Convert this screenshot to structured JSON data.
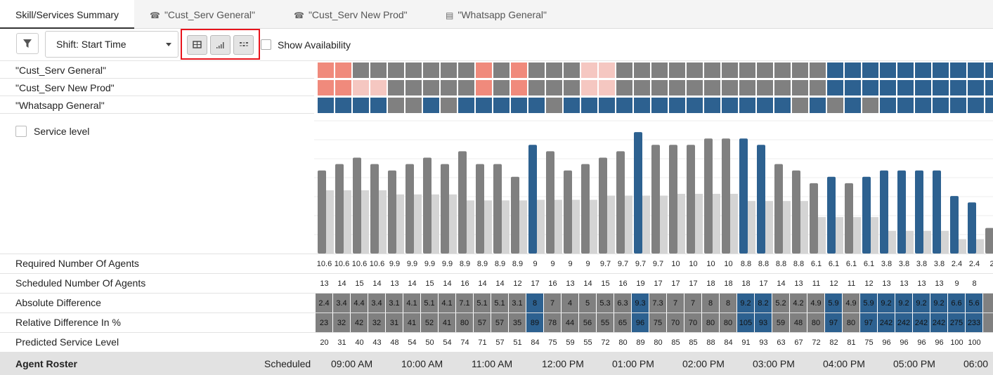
{
  "tabs": [
    {
      "label": "Skill/Services Summary",
      "icon": "none"
    },
    {
      "label": "\"Cust_Serv General\"",
      "icon": "phone-icon"
    },
    {
      "label": "\"Cust_Serv New Prod\"",
      "icon": "phone-icon"
    },
    {
      "label": "\"Whatsapp General\"",
      "icon": "chat-icon"
    }
  ],
  "toolbar": {
    "shift_select": "Shift: Start Time",
    "show_availability": "Show Availability"
  },
  "skills": [
    "\"Cust_Serv General\"",
    "\"Cust_Serv New Prod\"",
    "\"Whatsapp General\""
  ],
  "colors": {
    "gray": "#808080",
    "blue": "#2d6190",
    "red": "#f08a7c",
    "pink": "#f5c7c1",
    "light": "#d4d4d4"
  },
  "heatmap": [
    "RRGGGGGGGRGRGGGPPGGGGGGGGGGGGBBBBBBBBBBBBBBB",
    "RRPPGGGGGRGRGGGPPGGGGGGGGGGGGBBBBBBBBBBBBBBB",
    "BBBBGGBGBBBBBGBBBBBBBBBBBBBGBGBGBBBBBBBBRRRR"
  ],
  "service_level": "Service level",
  "chart_data": {
    "type": "bar",
    "series": [
      {
        "values": [
          13,
          14,
          15,
          14,
          13,
          14,
          15,
          14,
          16,
          14,
          14,
          12,
          17,
          16,
          13,
          14,
          15,
          16,
          19,
          17,
          17,
          17,
          18,
          18,
          18,
          17,
          14,
          13,
          11,
          12,
          11,
          12,
          13,
          13,
          13,
          13,
          9,
          8,
          4
        ]
      },
      {
        "values": [
          10.6,
          10.6,
          10.6,
          10.6,
          9.9,
          9.9,
          9.9,
          9.9,
          8.9,
          8.9,
          8.9,
          8.9,
          9,
          9,
          9,
          9,
          9.7,
          9.7,
          9.7,
          9.7,
          10,
          10,
          10,
          10,
          8.8,
          8.8,
          8.8,
          8.8,
          6.1,
          6.1,
          6.1,
          6.1,
          3.8,
          3.8,
          3.8,
          3.8,
          2.4,
          2.4,
          2.4
        ]
      }
    ],
    "highlight": [
      0,
      0,
      0,
      0,
      0,
      0,
      0,
      0,
      0,
      0,
      0,
      0,
      1,
      0,
      0,
      0,
      0,
      0,
      1,
      0,
      0,
      0,
      0,
      0,
      1,
      1,
      0,
      0,
      0,
      1,
      0,
      1,
      1,
      1,
      1,
      1,
      1,
      1,
      0
    ],
    "ylim": [
      0,
      20
    ],
    "grid": true
  },
  "rows": [
    {
      "label": "Required Number Of Agents",
      "style": "plain",
      "values": [
        "10.6",
        "10.6",
        "10.6",
        "10.6",
        "9.9",
        "9.9",
        "9.9",
        "9.9",
        "8.9",
        "8.9",
        "8.9",
        "8.9",
        "9",
        "9",
        "9",
        "9",
        "9.7",
        "9.7",
        "9.7",
        "9.7",
        "10",
        "10",
        "10",
        "10",
        "8.8",
        "8.8",
        "8.8",
        "8.8",
        "6.1",
        "6.1",
        "6.1",
        "6.1",
        "3.8",
        "3.8",
        "3.8",
        "3.8",
        "2.4",
        "2.4",
        "2"
      ]
    },
    {
      "label": "Scheduled Number Of Agents",
      "style": "plain",
      "values": [
        "13",
        "14",
        "15",
        "14",
        "13",
        "14",
        "15",
        "14",
        "16",
        "14",
        "14",
        "12",
        "17",
        "16",
        "13",
        "14",
        "15",
        "16",
        "19",
        "17",
        "17",
        "17",
        "18",
        "18",
        "18",
        "17",
        "14",
        "13",
        "11",
        "12",
        "11",
        "12",
        "13",
        "13",
        "13",
        "13",
        "9",
        "8",
        ""
      ]
    },
    {
      "label": "Absolute Difference",
      "style": "colored",
      "values": [
        "2.4",
        "3.4",
        "4.4",
        "3.4",
        "3.1",
        "4.1",
        "5.1",
        "4.1",
        "7.1",
        "5.1",
        "5.1",
        "3.1",
        "8",
        "7",
        "4",
        "5",
        "5.3",
        "6.3",
        "9.3",
        "7.3",
        "7",
        "7",
        "8",
        "8",
        "9.2",
        "8.2",
        "5.2",
        "4.2",
        "4.9",
        "5.9",
        "4.9",
        "5.9",
        "9.2",
        "9.2",
        "9.2",
        "9.2",
        "6.6",
        "5.6",
        ""
      ]
    },
    {
      "label": "Relative Difference In %",
      "style": "colored",
      "values": [
        "23",
        "32",
        "42",
        "32",
        "31",
        "41",
        "52",
        "41",
        "80",
        "57",
        "57",
        "35",
        "89",
        "78",
        "44",
        "56",
        "55",
        "65",
        "96",
        "75",
        "70",
        "70",
        "80",
        "80",
        "105",
        "93",
        "59",
        "48",
        "80",
        "97",
        "80",
        "97",
        "242",
        "242",
        "242",
        "242",
        "275",
        "233",
        ""
      ]
    },
    {
      "label": "Predicted Service Level",
      "style": "plain",
      "values": [
        "20",
        "31",
        "40",
        "43",
        "48",
        "54",
        "50",
        "54",
        "74",
        "71",
        "57",
        "51",
        "84",
        "75",
        "59",
        "55",
        "72",
        "80",
        "89",
        "80",
        "85",
        "85",
        "88",
        "84",
        "91",
        "93",
        "63",
        "67",
        "72",
        "82",
        "81",
        "75",
        "96",
        "96",
        "96",
        "96",
        "100",
        "100",
        ""
      ]
    }
  ],
  "footer": {
    "title": "Agent Roster",
    "scheduled": "Scheduled",
    "times": [
      "09:00 AM",
      "10:00 AM",
      "11:00 AM",
      "12:00 PM",
      "01:00 PM",
      "02:00 PM",
      "03:00 PM",
      "04:00 PM",
      "05:00 PM",
      "06:00"
    ]
  }
}
